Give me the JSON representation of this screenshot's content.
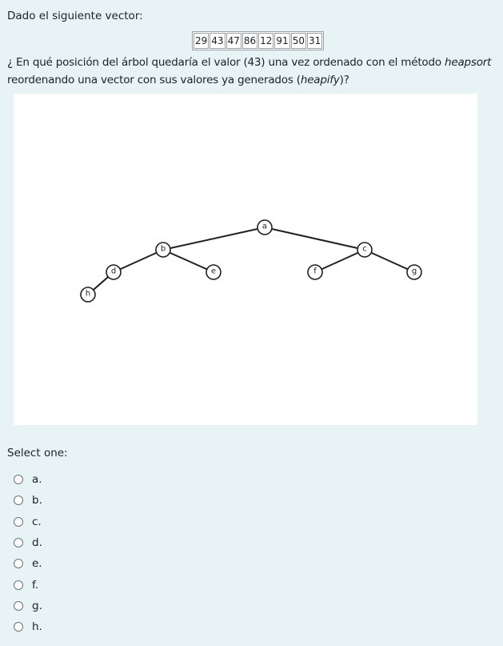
{
  "intro_text": "Dado el siguiente vector:",
  "vector": [
    "29",
    "43",
    "47",
    "86",
    "12",
    "91",
    "50",
    "31"
  ],
  "question": {
    "part1": "¿ En qué posición del árbol quedaría el valor (43) una vez ordenado con el método ",
    "em1": "heapsort",
    "part2": " reordenando una vector con sus valores ya generados (",
    "em2": "heapify",
    "part3": ")?"
  },
  "tree": {
    "nodes": [
      "a",
      "b",
      "c",
      "d",
      "e",
      "f",
      "g",
      "h"
    ]
  },
  "select_one": "Select one:",
  "options": [
    "a.",
    "b.",
    "c.",
    "d.",
    "e.",
    "f.",
    "g.",
    "h."
  ]
}
